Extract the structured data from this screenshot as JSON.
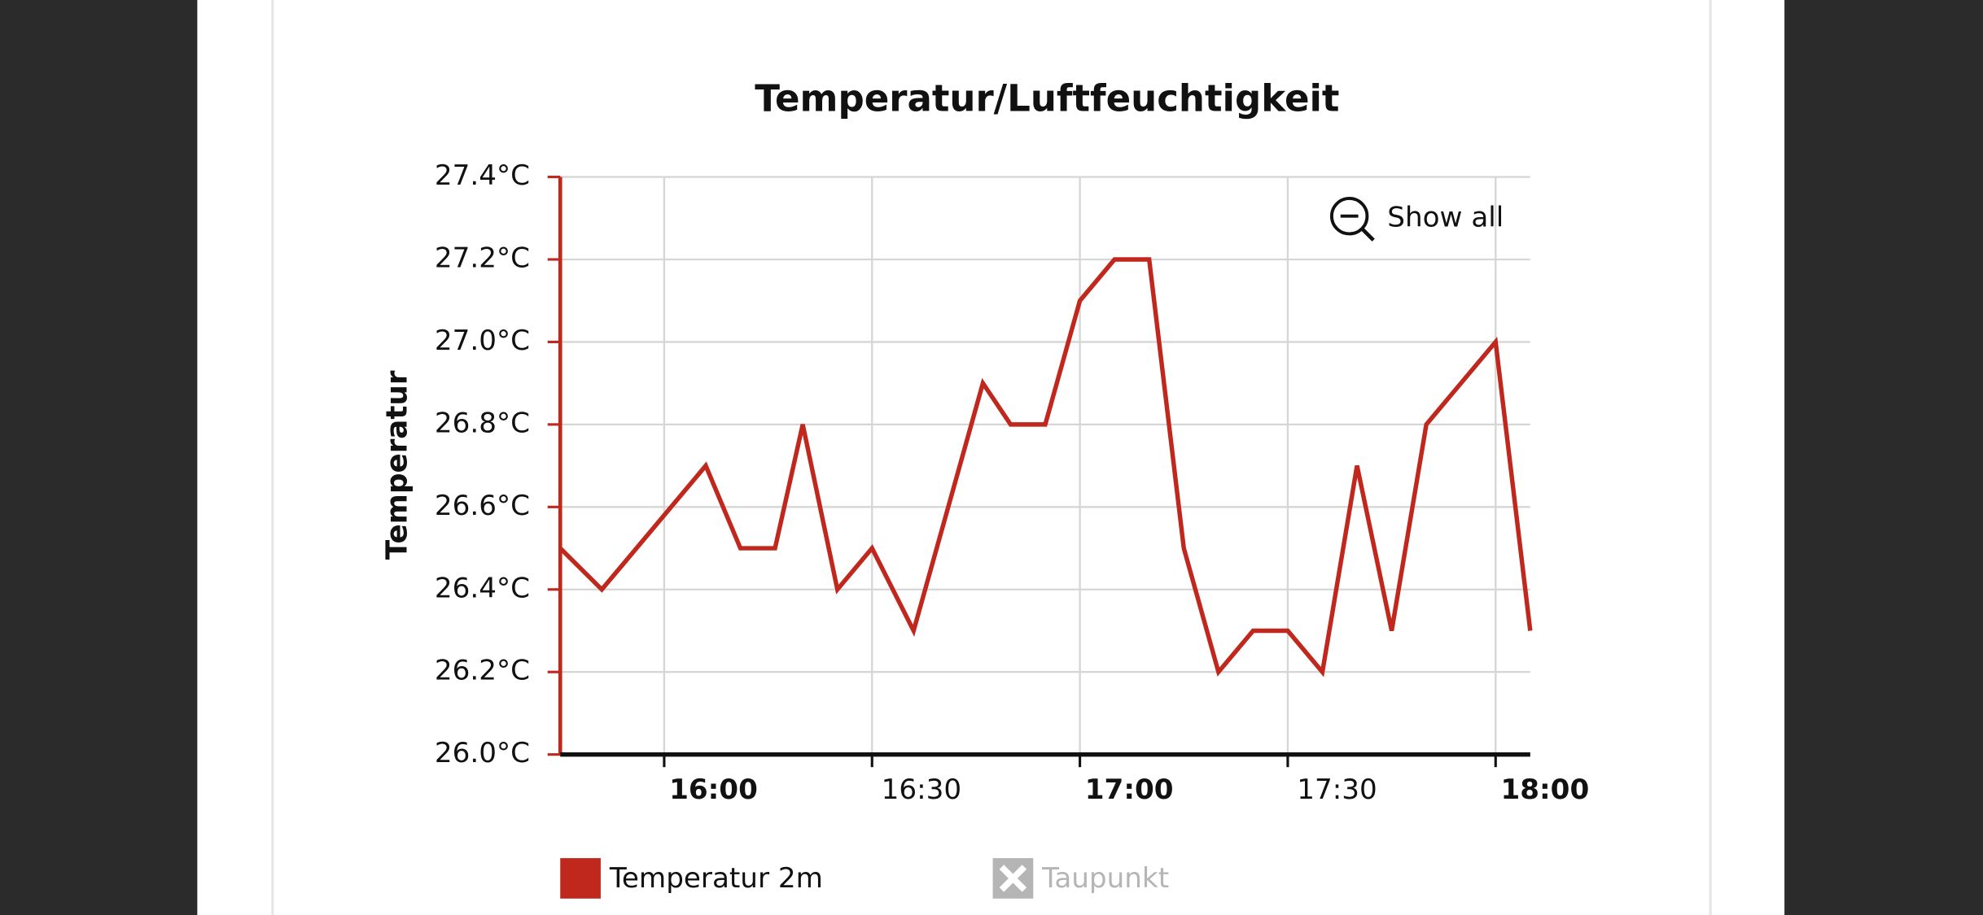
{
  "chart_data": {
    "type": "line",
    "title": "Temperatur/Luftfeuchtigkeit",
    "ylabel": "Temperatur",
    "x": [
      "15:45",
      "15:51",
      "16:06",
      "16:11",
      "16:16",
      "16:20",
      "16:25",
      "16:30",
      "16:36",
      "16:46",
      "16:50",
      "16:55",
      "17:00",
      "17:05",
      "17:10",
      "17:15",
      "17:20",
      "17:25",
      "17:30",
      "17:35",
      "17:40",
      "17:45",
      "17:50",
      "18:00",
      "18:05"
    ],
    "series": [
      {
        "name": "Temperatur 2m",
        "color": "#c0281e",
        "values": [
          26.5,
          26.4,
          26.7,
          26.5,
          26.5,
          26.8,
          26.4,
          26.5,
          26.3,
          26.9,
          26.8,
          26.8,
          27.1,
          27.2,
          27.2,
          26.5,
          26.2,
          26.3,
          26.3,
          26.2,
          26.7,
          26.3,
          26.8,
          27.0,
          26.3
        ]
      },
      {
        "name": "Taupunkt",
        "color": "#b5b5b5",
        "hidden": true
      }
    ],
    "xlim": [
      "15:45",
      "18:05"
    ],
    "xticks": [
      "16:00",
      "16:30",
      "17:00",
      "17:30",
      "18:00"
    ],
    "ylim": [
      26.0,
      27.4
    ],
    "yticks": [
      {
        "value": 26.0,
        "label": "26.0°C"
      },
      {
        "value": 26.2,
        "label": "26.2°C"
      },
      {
        "value": 26.4,
        "label": "26.4°C"
      },
      {
        "value": 26.6,
        "label": "26.6°C"
      },
      {
        "value": 26.8,
        "label": "26.8°C"
      },
      {
        "value": 27.0,
        "label": "27.0°C"
      },
      {
        "value": 27.2,
        "label": "27.2°C"
      },
      {
        "value": 27.4,
        "label": "27.4°C"
      }
    ],
    "grid": true,
    "reset_zoom_label": "Show all"
  }
}
